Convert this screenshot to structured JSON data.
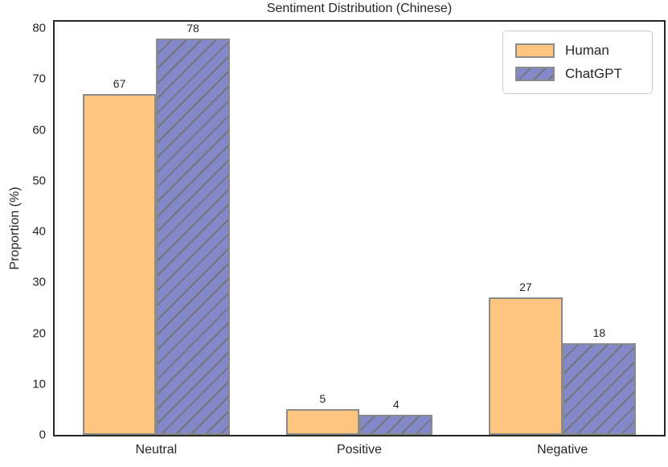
{
  "figure": {
    "background": "#ffffff",
    "spine_color": "#262626",
    "text_color": "#262626"
  },
  "chart_data": {
    "type": "bar",
    "title": "Sentiment Distribution (Chinese)",
    "xlabel": "",
    "ylabel": "Proportion (%)",
    "categories": [
      "Neutral",
      "Positive",
      "Negative"
    ],
    "series": [
      {
        "name": "Human",
        "values": [
          67,
          5,
          27
        ],
        "fill": "#FDC57F",
        "edge": "#8a8a8a",
        "hatch": ""
      },
      {
        "name": "ChatGPT",
        "values": [
          78,
          4,
          18
        ],
        "fill": "#8388C8",
        "edge": "#8a8a8a",
        "hatch": "/",
        "hatch_color": "#74747c"
      }
    ],
    "yticks": [
      0,
      10,
      20,
      30,
      40,
      50,
      60,
      70,
      80
    ],
    "ylim": [
      0,
      81.3
    ],
    "grid": "off",
    "legend_position": "upper right",
    "bar_labels_shown": true
  }
}
